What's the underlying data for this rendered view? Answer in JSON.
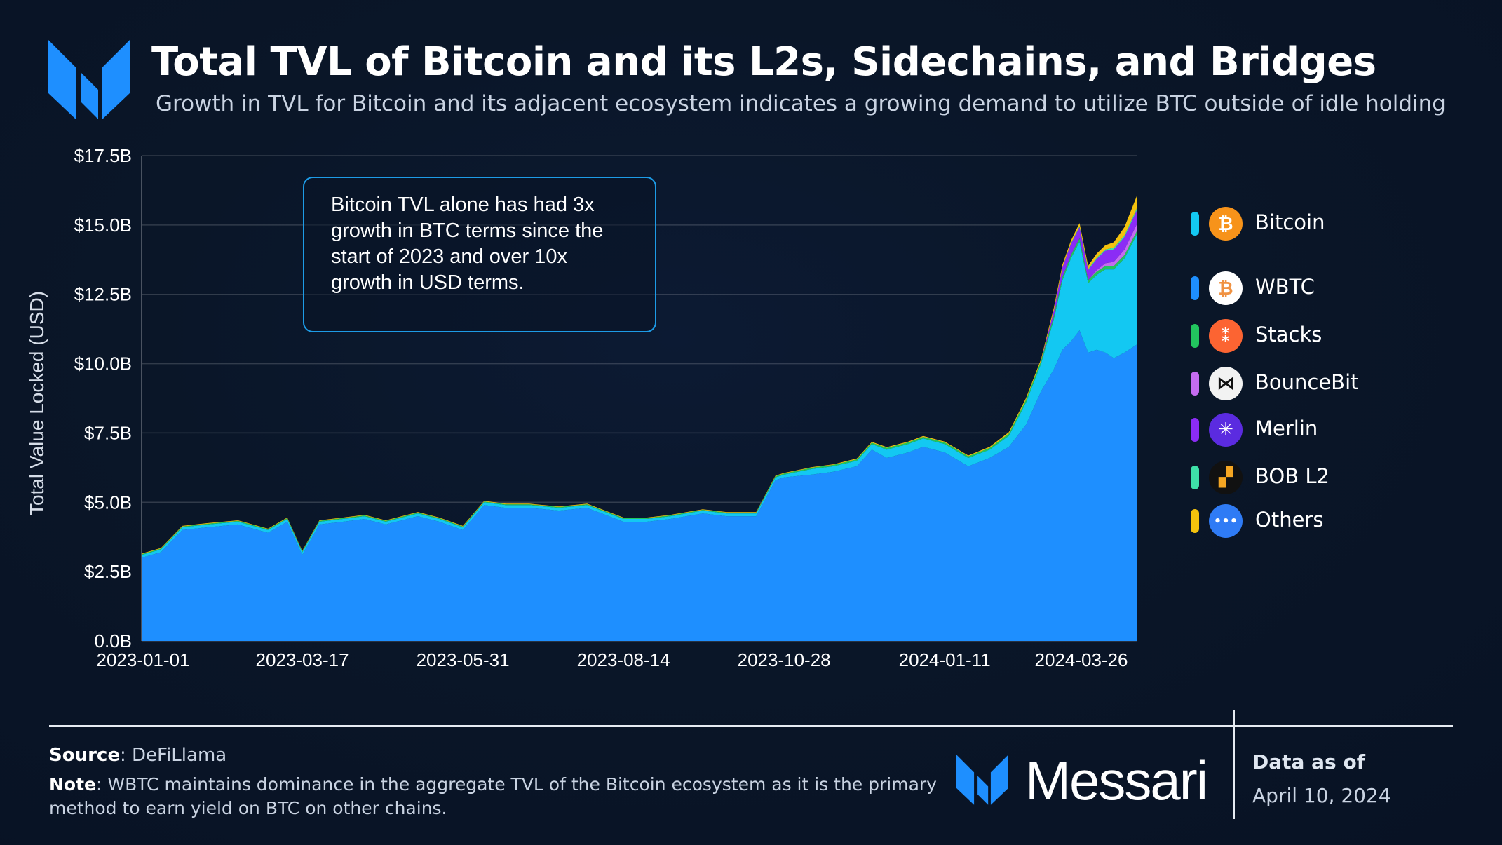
{
  "header": {
    "title": "Total TVL of Bitcoin and its L2s, Sidechains, and Bridges",
    "subtitle": "Growth in TVL for Bitcoin and its adjacent ecosystem indicates a growing demand to utilize BTC outside of idle holding"
  },
  "callout": {
    "text": "Bitcoin TVL alone has had 3x growth in BTC terms since the start of 2023 and over 10x growth in USD terms."
  },
  "chart_data": {
    "type": "area",
    "stacked": true,
    "ylabel": "Total Value Locked (USD)",
    "xlabel": "",
    "ylim": [
      0,
      17.5
    ],
    "y_unit": "$B",
    "yticks": [
      "0.0B",
      "$2.5B",
      "$5.0B",
      "$7.5B",
      "$10.0B",
      "$12.5B",
      "$15.0B",
      "$17.5B"
    ],
    "xticks": [
      "2023-01-01",
      "2023-03-17",
      "2023-05-31",
      "2023-08-14",
      "2023-10-28",
      "2024-01-11",
      "2024-03-26"
    ],
    "grid": "horizontal",
    "legend_position": "right",
    "x": [
      "2023-01-01",
      "2023-01-10",
      "2023-01-20",
      "2023-02-01",
      "2023-02-15",
      "2023-03-01",
      "2023-03-10",
      "2023-03-17",
      "2023-03-25",
      "2023-04-05",
      "2023-04-15",
      "2023-04-25",
      "2023-05-10",
      "2023-05-20",
      "2023-05-31",
      "2023-06-10",
      "2023-06-20",
      "2023-07-01",
      "2023-07-15",
      "2023-07-28",
      "2023-08-14",
      "2023-08-25",
      "2023-09-05",
      "2023-09-20",
      "2023-10-01",
      "2023-10-15",
      "2023-10-24",
      "2023-10-28",
      "2023-11-10",
      "2023-11-20",
      "2023-12-01",
      "2023-12-08",
      "2023-12-15",
      "2023-12-25",
      "2024-01-01",
      "2024-01-11",
      "2024-01-22",
      "2024-02-01",
      "2024-02-10",
      "2024-02-18",
      "2024-02-25",
      "2024-03-02",
      "2024-03-06",
      "2024-03-10",
      "2024-03-14",
      "2024-03-18",
      "2024-03-22",
      "2024-03-26",
      "2024-03-30",
      "2024-04-04",
      "2024-04-10"
    ],
    "series": [
      {
        "name": "WBTC",
        "values": [
          3.0,
          3.2,
          4.0,
          4.1,
          4.2,
          3.9,
          4.3,
          3.1,
          4.2,
          4.3,
          4.4,
          4.2,
          4.5,
          4.3,
          4.0,
          4.9,
          4.8,
          4.8,
          4.7,
          4.8,
          4.3,
          4.3,
          4.4,
          4.6,
          4.5,
          4.5,
          5.8,
          5.9,
          6.0,
          6.1,
          6.3,
          6.9,
          6.6,
          6.8,
          7.0,
          6.8,
          6.3,
          6.6,
          7.0,
          7.8,
          9.0,
          9.8,
          10.5,
          10.8,
          11.2,
          10.4,
          10.5,
          10.4,
          10.2,
          10.4,
          10.7
        ]
      },
      {
        "name": "Bitcoin",
        "values": [
          0.1,
          0.1,
          0.1,
          0.1,
          0.1,
          0.1,
          0.1,
          0.1,
          0.1,
          0.1,
          0.1,
          0.1,
          0.1,
          0.1,
          0.1,
          0.1,
          0.1,
          0.1,
          0.1,
          0.1,
          0.1,
          0.1,
          0.1,
          0.1,
          0.1,
          0.1,
          0.1,
          0.1,
          0.2,
          0.2,
          0.2,
          0.2,
          0.3,
          0.3,
          0.3,
          0.3,
          0.3,
          0.3,
          0.4,
          0.8,
          1.0,
          1.8,
          2.5,
          3.0,
          3.2,
          2.5,
          2.7,
          3.0,
          3.2,
          3.4,
          4.0
        ]
      },
      {
        "name": "Stacks",
        "values": [
          0.03,
          0.03,
          0.03,
          0.03,
          0.03,
          0.03,
          0.03,
          0.03,
          0.03,
          0.03,
          0.03,
          0.03,
          0.03,
          0.03,
          0.03,
          0.03,
          0.03,
          0.03,
          0.03,
          0.03,
          0.03,
          0.03,
          0.03,
          0.03,
          0.03,
          0.03,
          0.04,
          0.04,
          0.05,
          0.05,
          0.05,
          0.05,
          0.06,
          0.06,
          0.06,
          0.06,
          0.06,
          0.06,
          0.08,
          0.1,
          0.1,
          0.12,
          0.12,
          0.12,
          0.12,
          0.12,
          0.12,
          0.12,
          0.12,
          0.12,
          0.12
        ]
      },
      {
        "name": "BounceBit",
        "values": [
          0,
          0,
          0,
          0,
          0,
          0,
          0,
          0,
          0,
          0,
          0,
          0,
          0,
          0,
          0,
          0,
          0,
          0,
          0,
          0,
          0,
          0,
          0,
          0,
          0,
          0,
          0,
          0,
          0,
          0,
          0,
          0,
          0,
          0,
          0,
          0,
          0,
          0,
          0,
          0,
          0,
          0,
          0,
          0,
          0,
          0,
          0.05,
          0.1,
          0.15,
          0.2,
          0.25
        ]
      },
      {
        "name": "Merlin",
        "values": [
          0,
          0,
          0,
          0,
          0,
          0,
          0,
          0,
          0,
          0,
          0,
          0,
          0,
          0,
          0,
          0,
          0,
          0,
          0,
          0,
          0,
          0,
          0,
          0,
          0,
          0,
          0,
          0,
          0,
          0,
          0,
          0,
          0,
          0,
          0,
          0,
          0,
          0,
          0,
          0,
          0,
          0.2,
          0.35,
          0.4,
          0.4,
          0.35,
          0.4,
          0.45,
          0.45,
          0.45,
          0.5
        ]
      },
      {
        "name": "BOB L2",
        "values": [
          0,
          0,
          0,
          0,
          0,
          0,
          0,
          0,
          0,
          0,
          0,
          0,
          0,
          0,
          0,
          0,
          0,
          0,
          0,
          0,
          0,
          0,
          0,
          0,
          0,
          0,
          0,
          0,
          0,
          0,
          0,
          0,
          0,
          0,
          0,
          0,
          0,
          0,
          0,
          0,
          0,
          0,
          0,
          0.02,
          0.03,
          0.04,
          0.05,
          0.05,
          0.06,
          0.06,
          0.08
        ]
      },
      {
        "name": "Others",
        "values": [
          0.02,
          0.02,
          0.02,
          0.02,
          0.02,
          0.02,
          0.02,
          0.02,
          0.02,
          0.02,
          0.02,
          0.02,
          0.02,
          0.02,
          0.02,
          0.02,
          0.02,
          0.02,
          0.02,
          0.02,
          0.02,
          0.02,
          0.02,
          0.02,
          0.02,
          0.02,
          0.02,
          0.02,
          0.02,
          0.02,
          0.03,
          0.03,
          0.03,
          0.03,
          0.03,
          0.03,
          0.03,
          0.04,
          0.05,
          0.06,
          0.06,
          0.1,
          0.1,
          0.1,
          0.12,
          0.12,
          0.15,
          0.15,
          0.2,
          0.3,
          0.45
        ]
      }
    ]
  },
  "legend": [
    {
      "name": "Bitcoin",
      "color": "#13c8f2",
      "icon": "bitcoin-icon",
      "glyph": "₿",
      "icon_bg": "#f7931a",
      "icon_fg": "#ffffff"
    },
    {
      "name": "WBTC",
      "color": "#1e8fff",
      "icon": "wbtc-icon",
      "glyph": "₿",
      "icon_bg": "#ffffff",
      "icon_fg": "#f09242"
    },
    {
      "name": "Stacks",
      "color": "#22c55e",
      "icon": "stacks-icon",
      "glyph": "⁑",
      "icon_bg": "#fc6432",
      "icon_fg": "#ffffff"
    },
    {
      "name": "BounceBit",
      "color": "#c56cf0",
      "icon": "bouncebit-icon",
      "glyph": "⋈",
      "icon_bg": "#f2f2f2",
      "icon_fg": "#111111"
    },
    {
      "name": "Merlin",
      "color": "#8b2cf5",
      "icon": "merlin-icon",
      "glyph": "✳",
      "icon_bg": "#5b2be0",
      "icon_fg": "#ffffff"
    },
    {
      "name": "BOB L2",
      "color": "#3ee0a8",
      "icon": "bob-icon",
      "glyph": "▞",
      "icon_bg": "#111111",
      "icon_fg": "#f5a623"
    },
    {
      "name": "Others",
      "color": "#f4c20d",
      "icon": "more-icon",
      "glyph": "•••",
      "icon_bg": "#2f7bf5",
      "icon_fg": "#ffffff"
    }
  ],
  "footer": {
    "source_label": "Source",
    "source_value": ": DeFiLlama",
    "note_label": "Note",
    "note_value": ": WBTC maintains dominance in the aggregate TVL of the Bitcoin ecosystem as it is the primary method to earn yield on BTC on other chains.",
    "brand": "Messari",
    "as_of_label": "Data as of",
    "as_of_date": "April 10, 2024"
  },
  "colors": {
    "background": "#0a1628",
    "accent": "#1e8fff",
    "callout_border": "#1d9be6"
  }
}
